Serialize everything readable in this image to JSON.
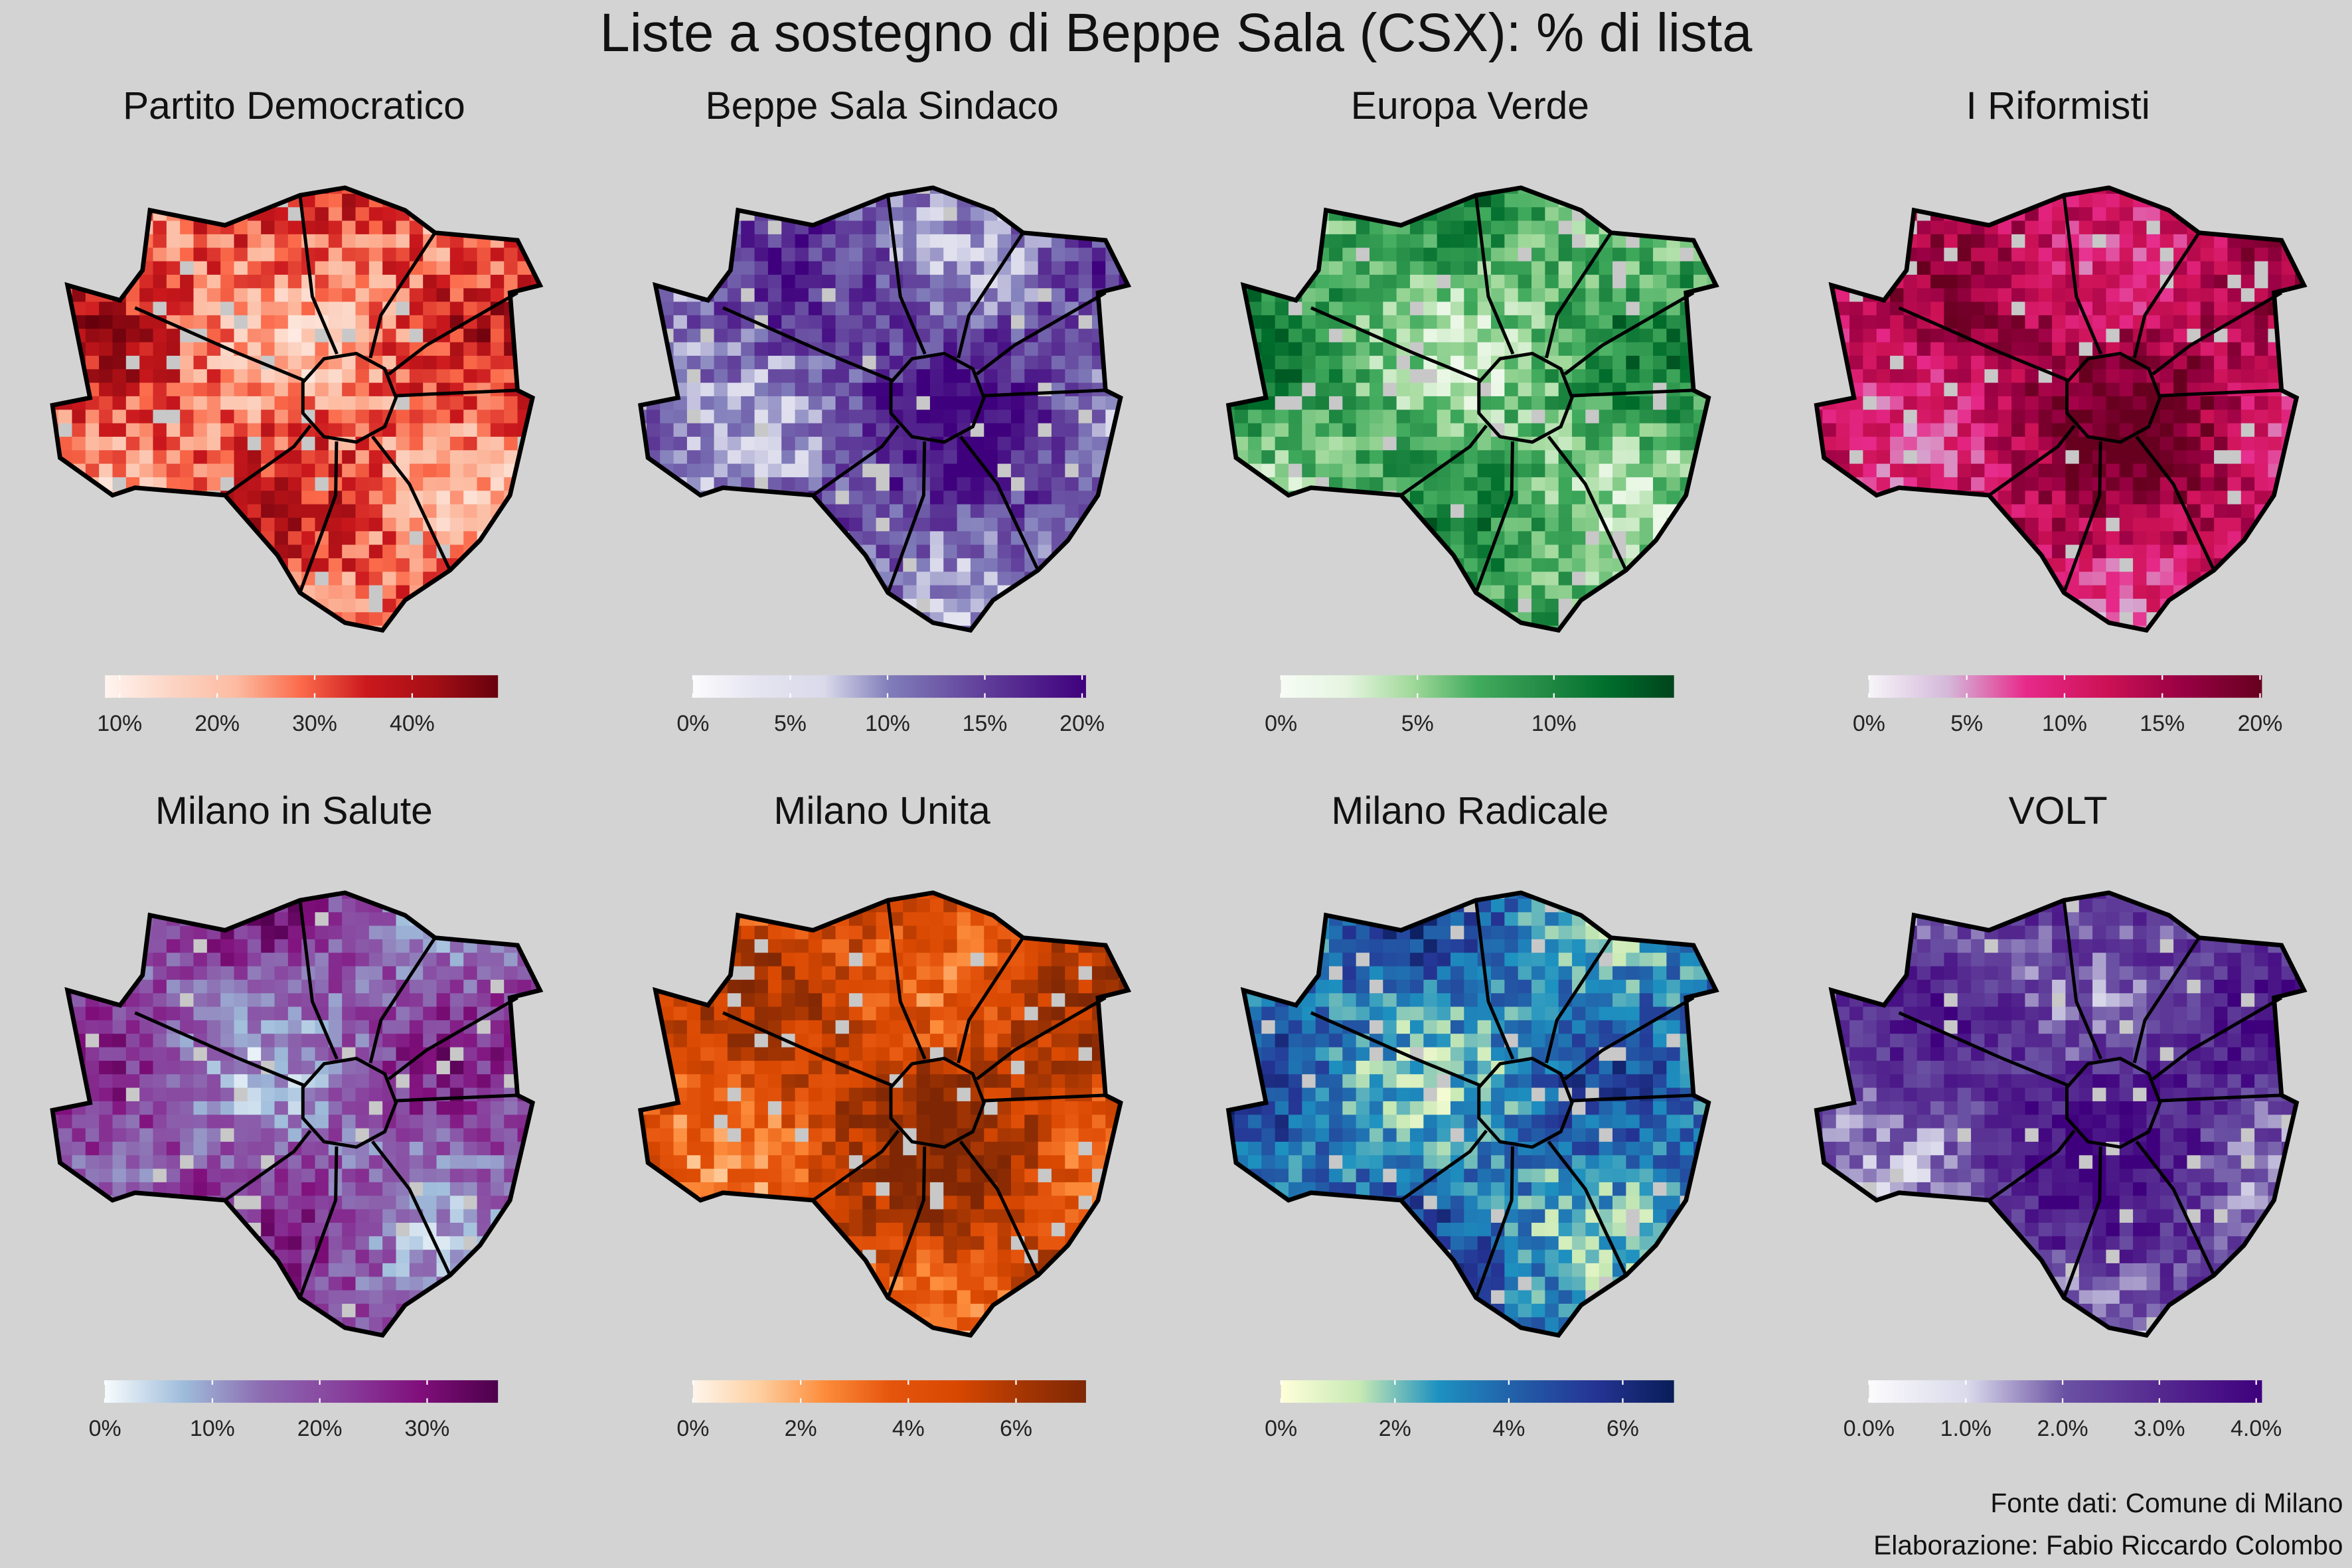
{
  "title": "Liste a sostegno di Beppe Sala (CSX): % di lista",
  "caption": [
    "Fonte dati: Comune di Milano",
    "Elaborazione: Fabio Riccardo Colombo"
  ],
  "background_color": "#d3d3d3",
  "missing_color": "#c8c8c8",
  "chart_data": {
    "type": "choropleth",
    "panels": [
      {
        "title": "Partito Democratico",
        "limits": [
          8.5,
          48.8
        ],
        "ticks": [
          10,
          20,
          30,
          40
        ],
        "labels": [
          "10%",
          "20%",
          "30%",
          "40%"
        ],
        "palette": [
          "#fff5f0",
          "#fcd5c5",
          "#fcbba1",
          "#fb6a4a",
          "#cb181d",
          "#a50f15",
          "#67000d"
        ]
      },
      {
        "title": "Beppe Sala Sindaco",
        "limits": [
          0,
          20.2
        ],
        "ticks": [
          0,
          5,
          10,
          15,
          20
        ],
        "labels": [
          "0%",
          "5%",
          "10%",
          "15%",
          "20%"
        ],
        "palette": [
          "#fcfbfd",
          "#e5e4f0",
          "#dadaeb",
          "#807dba",
          "#6a51a3",
          "#54278f",
          "#3f007d"
        ]
      },
      {
        "title": "Europa Verde",
        "limits": [
          0,
          14.4
        ],
        "ticks": [
          0,
          5,
          10
        ],
        "labels": [
          "0%",
          "5%",
          "10%"
        ],
        "palette": [
          "#f7fcf5",
          "#e5f5e0",
          "#a1d99b",
          "#41ab5d",
          "#238b45",
          "#006d2c",
          "#00441b"
        ]
      },
      {
        "title": "I Riformisti",
        "limits": [
          0,
          20.1
        ],
        "ticks": [
          0,
          5,
          10,
          15,
          20
        ],
        "labels": [
          "0%",
          "5%",
          "10%",
          "15%",
          "20%"
        ],
        "palette": [
          "#f7f4f9",
          "#d4b9da",
          "#e7298a",
          "#ce1256",
          "#980043",
          "#67001f"
        ]
      },
      {
        "title": "Milano in Salute",
        "limits": [
          0,
          36.6
        ],
        "ticks": [
          0,
          10,
          20,
          30
        ],
        "labels": [
          "0%",
          "10%",
          "20%",
          "30%"
        ],
        "palette": [
          "#f7fcfd",
          "#9ebcda",
          "#8c6bb1",
          "#88419d",
          "#810f7c",
          "#4d004b"
        ]
      },
      {
        "title": "Milano Unita",
        "limits": [
          0,
          7.3
        ],
        "ticks": [
          0,
          2,
          4,
          6
        ],
        "labels": [
          "0%",
          "2%",
          "4%",
          "6%"
        ],
        "palette": [
          "#fff5eb",
          "#fdd0a2",
          "#fd8d3c",
          "#e6550d",
          "#d94801",
          "#a63603",
          "#7f2704"
        ]
      },
      {
        "title": "Milano Radicale",
        "limits": [
          0,
          6.9
        ],
        "ticks": [
          0,
          2,
          4,
          6
        ],
        "labels": [
          "0%",
          "2%",
          "4%",
          "6%"
        ],
        "palette": [
          "#ffffd9",
          "#c7e9b4",
          "#1d91c0",
          "#225ea8",
          "#253494",
          "#081d58"
        ]
      },
      {
        "title": "VOLT",
        "limits": [
          0,
          4.06
        ],
        "ticks": [
          0,
          1,
          2,
          3,
          4
        ],
        "labels": [
          "0.0%",
          "1.0%",
          "2.0%",
          "3.0%",
          "4.0%"
        ],
        "palette": [
          "#fcfbfd",
          "#dadaeb",
          "#6a51a3",
          "#54278f",
          "#3f007d"
        ]
      }
    ]
  }
}
